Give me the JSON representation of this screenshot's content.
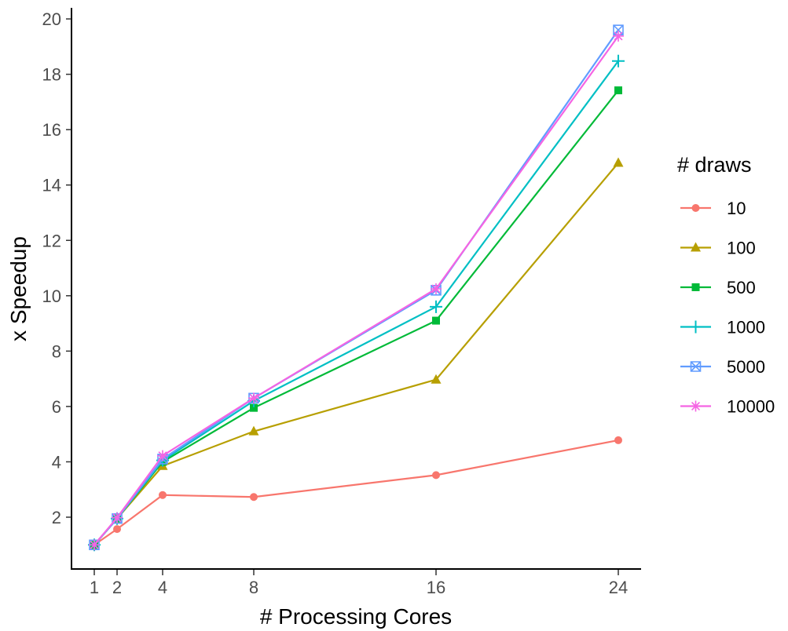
{
  "chart_data": {
    "type": "line",
    "xlabel": "# Processing Cores",
    "ylabel": "x Speedup",
    "x": [
      1,
      2,
      4,
      8,
      16,
      24
    ],
    "xticks": [
      1,
      2,
      4,
      8,
      16,
      24
    ],
    "yticks": [
      2,
      4,
      6,
      8,
      10,
      12,
      14,
      16,
      18,
      20
    ],
    "xlim": [
      0.0,
      25.0
    ],
    "ylim": [
      0.1,
      20.4
    ],
    "grid": false,
    "legend": {
      "title": "# draws",
      "placement": "right"
    },
    "series": [
      {
        "name": "10",
        "color": "#F8766D",
        "marker": "circle",
        "values": [
          1.0,
          1.57,
          2.8,
          2.73,
          3.52,
          4.78
        ]
      },
      {
        "name": "100",
        "color": "#B79F00",
        "marker": "triangle",
        "values": [
          1.0,
          1.95,
          3.85,
          5.1,
          6.97,
          14.8
        ]
      },
      {
        "name": "500",
        "color": "#00BA38",
        "marker": "square",
        "values": [
          1.0,
          1.95,
          4.0,
          5.95,
          9.1,
          17.42
        ]
      },
      {
        "name": "1000",
        "color": "#00BFC4",
        "marker": "plus",
        "values": [
          1.0,
          1.95,
          4.05,
          6.2,
          9.6,
          18.48
        ]
      },
      {
        "name": "5000",
        "color": "#619CFF",
        "marker": "square-cross",
        "values": [
          1.0,
          1.95,
          4.1,
          6.3,
          10.2,
          19.6
        ]
      },
      {
        "name": "10000",
        "color": "#F564E3",
        "marker": "asterisk",
        "values": [
          1.0,
          1.98,
          4.22,
          6.3,
          10.25,
          19.38
        ]
      }
    ]
  }
}
